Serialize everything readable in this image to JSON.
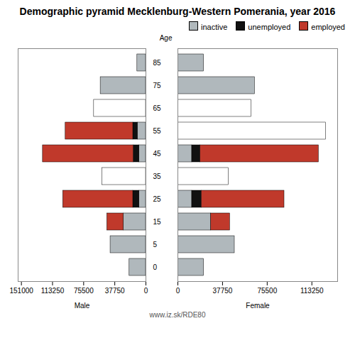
{
  "chart_data": [
    {
      "type": "bar",
      "title": "Demographic pyramid Mecklenburg-Western Pomerania, year 2016",
      "xlabel": "Male",
      "ylabel": "Age",
      "annotations": [
        "www.iz.sk/RDE80"
      ],
      "orientation": "horizontal",
      "stacked": true,
      "categories": [
        "0",
        "5",
        "15",
        "25",
        "35",
        "45",
        "55",
        "65",
        "75",
        "85"
      ],
      "xlim": [
        155000,
        0
      ],
      "xticks": [
        151000,
        113250,
        75500,
        37750,
        0
      ],
      "series": [
        {
          "name": "inactive",
          "color": "#b0b8bc",
          "values": [
            20000,
            43000,
            27000,
            8000,
            53000,
            8000,
            10000,
            63000,
            55000,
            10500
          ],
          "colors": [
            "#b0b8bc",
            "#b0b8bc",
            "#b0b8bc",
            "#b0b8bc",
            "#ffffff",
            "#b0b8bc",
            "#b0b8bc",
            "#ffffff",
            "#b0b8bc",
            "#b0b8bc"
          ]
        },
        {
          "name": "unemployed",
          "color": "#111111",
          "values": [
            0,
            0,
            0,
            7500,
            0,
            7000,
            5500,
            0,
            0,
            0
          ],
          "colors": [
            "#111111",
            "#111111",
            "#111111",
            "#111111",
            "#111111",
            "#111111",
            "#111111",
            "#111111",
            "#111111",
            "#111111"
          ]
        },
        {
          "name": "employed",
          "color": "#c0392b",
          "values": [
            0,
            0,
            20000,
            85000,
            0,
            110000,
            82000,
            0,
            0,
            0
          ],
          "colors": [
            "#c0392b",
            "#c0392b",
            "#c0392b",
            "#c0392b",
            "#c0392b",
            "#c0392b",
            "#c0392b",
            "#c0392b",
            "#c0392b",
            "#c0392b"
          ]
        }
      ]
    },
    {
      "type": "bar",
      "xlabel": "Female",
      "legend": "upper right",
      "orientation": "horizontal",
      "stacked": true,
      "categories": [
        "0",
        "5",
        "15",
        "25",
        "35",
        "45",
        "55",
        "65",
        "75",
        "85"
      ],
      "xlim": [
        0,
        135000
      ],
      "xticks": [
        0,
        37750,
        75500,
        113250
      ],
      "series": [
        {
          "name": "inactive",
          "color": "#b0b8bc",
          "values": [
            22000,
            48000,
            28000,
            12000,
            43000,
            12000,
            0,
            62000,
            65000,
            22000
          ],
          "colors": [
            "#b0b8bc",
            "#b0b8bc",
            "#b0b8bc",
            "#b0b8bc",
            "#ffffff",
            "#b0b8bc",
            "#b0b8bc",
            "#ffffff",
            "#b0b8bc",
            "#b0b8bc"
          ]
        },
        {
          "name": "unemployed",
          "color": "#111111",
          "values": [
            0,
            0,
            0,
            8000,
            0,
            7000,
            0,
            0,
            0,
            0
          ],
          "colors": [
            "#111111",
            "#111111",
            "#111111",
            "#111111",
            "#111111",
            "#111111",
            "#111111",
            "#111111",
            "#111111",
            "#111111"
          ]
        },
        {
          "name": "employed",
          "color": "#c0392b",
          "values": [
            0,
            0,
            16000,
            70000,
            0,
            100000,
            125000,
            0,
            0,
            0
          ],
          "colors": [
            "#c0392b",
            "#c0392b",
            "#c0392b",
            "#c0392b",
            "#c0392b",
            "#c0392b",
            "#ffffff",
            "#c0392b",
            "#c0392b",
            "#c0392b"
          ]
        }
      ]
    }
  ]
}
